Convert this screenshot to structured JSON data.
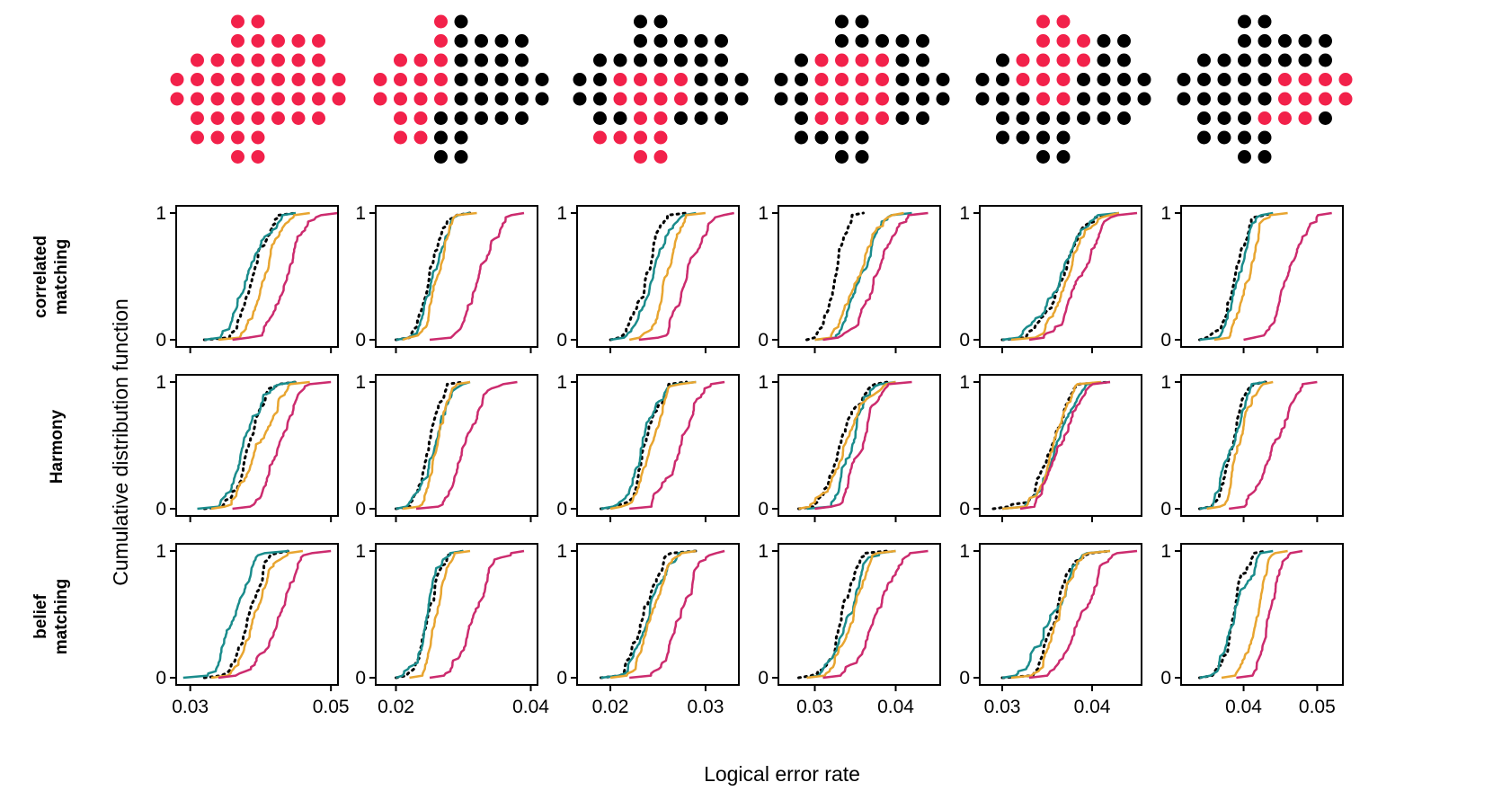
{
  "figure": {
    "ylabel": "Cumulative distribution function",
    "xlabel": "Logical error rate",
    "row_labels": [
      [
        "correlated",
        "matching"
      ],
      [
        "Harmony"
      ],
      [
        "belief",
        "matching"
      ]
    ],
    "colors": {
      "red": "#f2214a",
      "black": "#000000",
      "teal": "#1a8c8c",
      "orange": "#e8a530",
      "magenta": "#cc2b6e",
      "dotted": "#000000"
    }
  },
  "chart_data": {
    "type": "line",
    "description_series": [
      "dotted (black)",
      "teal",
      "orange",
      "magenta"
    ],
    "yticks": [
      {
        "v": 0,
        "label": "0"
      },
      {
        "v": 1,
        "label": "1"
      }
    ],
    "columns": [
      {
        "xlim": [
          0.028,
          0.051
        ],
        "xticks": [
          {
            "v": 0.03,
            "label": "0.03"
          },
          {
            "v": 0.05,
            "label": "0.05"
          }
        ],
        "rows": [
          {
            "dotted": [
              0.032,
              0.045
            ],
            "teal": [
              0.032,
              0.045
            ],
            "orange": [
              0.034,
              0.047
            ],
            "magenta": [
              0.036,
              0.051
            ]
          },
          {
            "dotted": [
              0.032,
              0.045
            ],
            "teal": [
              0.031,
              0.045
            ],
            "orange": [
              0.033,
              0.047
            ],
            "magenta": [
              0.036,
              0.05
            ]
          },
          {
            "dotted": [
              0.032,
              0.044
            ],
            "teal": [
              0.029,
              0.044
            ],
            "orange": [
              0.033,
              0.046
            ],
            "magenta": [
              0.034,
              0.05
            ]
          }
        ]
      },
      {
        "xlim": [
          0.017,
          0.041
        ],
        "xticks": [
          {
            "v": 0.02,
            "label": "0.02"
          },
          {
            "v": 0.04,
            "label": "0.04"
          }
        ],
        "rows": [
          {
            "dotted": [
              0.02,
              0.031
            ],
            "teal": [
              0.02,
              0.031
            ],
            "orange": [
              0.021,
              0.032
            ],
            "magenta": [
              0.025,
              0.039
            ]
          },
          {
            "dotted": [
              0.02,
              0.03
            ],
            "teal": [
              0.02,
              0.031
            ],
            "orange": [
              0.021,
              0.031
            ],
            "magenta": [
              0.023,
              0.038
            ]
          },
          {
            "dotted": [
              0.02,
              0.03
            ],
            "teal": [
              0.02,
              0.03
            ],
            "orange": [
              0.022,
              0.031
            ],
            "magenta": [
              0.025,
              0.039
            ]
          }
        ]
      },
      {
        "xlim": [
          0.0165,
          0.0335
        ],
        "xticks": [
          {
            "v": 0.02,
            "label": "0.02"
          },
          {
            "v": 0.03,
            "label": "0.03"
          }
        ],
        "rows": [
          {
            "dotted": [
              0.02,
              0.028
            ],
            "teal": [
              0.02,
              0.029
            ],
            "orange": [
              0.022,
              0.03
            ],
            "magenta": [
              0.023,
              0.033
            ]
          },
          {
            "dotted": [
              0.019,
              0.028
            ],
            "teal": [
              0.019,
              0.029
            ],
            "orange": [
              0.02,
              0.029
            ],
            "magenta": [
              0.022,
              0.032
            ]
          },
          {
            "dotted": [
              0.019,
              0.029
            ],
            "teal": [
              0.019,
              0.029
            ],
            "orange": [
              0.02,
              0.029
            ],
            "magenta": [
              0.022,
              0.032
            ]
          }
        ]
      },
      {
        "xlim": [
          0.0255,
          0.0455
        ],
        "xticks": [
          {
            "v": 0.03,
            "label": "0.03"
          },
          {
            "v": 0.04,
            "label": "0.04"
          }
        ],
        "rows": [
          {
            "dotted": [
              0.029,
              0.036
            ],
            "teal": [
              0.03,
              0.042
            ],
            "orange": [
              0.03,
              0.041
            ],
            "magenta": [
              0.031,
              0.044
            ]
          },
          {
            "dotted": [
              0.028,
              0.039
            ],
            "teal": [
              0.029,
              0.04
            ],
            "orange": [
              0.028,
              0.04
            ],
            "magenta": [
              0.03,
              0.042
            ]
          },
          {
            "dotted": [
              0.028,
              0.039
            ],
            "teal": [
              0.029,
              0.04
            ],
            "orange": [
              0.029,
              0.04
            ],
            "magenta": [
              0.031,
              0.044
            ]
          }
        ]
      },
      {
        "xlim": [
          0.0275,
          0.0455
        ],
        "xticks": [
          {
            "v": 0.03,
            "label": "0.03"
          },
          {
            "v": 0.04,
            "label": "0.04"
          }
        ],
        "rows": [
          {
            "dotted": [
              0.03,
              0.043
            ],
            "teal": [
              0.03,
              0.043
            ],
            "orange": [
              0.031,
              0.043
            ],
            "magenta": [
              0.033,
              0.045
            ]
          },
          {
            "dotted": [
              0.029,
              0.042
            ],
            "teal": [
              0.03,
              0.042
            ],
            "orange": [
              0.03,
              0.041
            ],
            "magenta": [
              0.032,
              0.042
            ]
          },
          {
            "dotted": [
              0.03,
              0.042
            ],
            "teal": [
              0.03,
              0.042
            ],
            "orange": [
              0.031,
              0.042
            ],
            "magenta": [
              0.033,
              0.045
            ]
          }
        ]
      },
      {
        "xlim": [
          0.0315,
          0.0535
        ],
        "xticks": [
          {
            "v": 0.04,
            "label": "0.04"
          },
          {
            "v": 0.05,
            "label": "0.05"
          }
        ],
        "rows": [
          {
            "dotted": [
              0.034,
              0.044
            ],
            "teal": [
              0.034,
              0.044
            ],
            "orange": [
              0.036,
              0.046
            ],
            "magenta": [
              0.04,
              0.052
            ]
          },
          {
            "dotted": [
              0.034,
              0.043
            ],
            "teal": [
              0.034,
              0.043
            ],
            "orange": [
              0.035,
              0.044
            ],
            "magenta": [
              0.038,
              0.05
            ]
          },
          {
            "dotted": [
              0.034,
              0.043
            ],
            "teal": [
              0.034,
              0.044
            ],
            "orange": [
              0.037,
              0.046
            ],
            "magenta": [
              0.039,
              0.048
            ]
          }
        ]
      }
    ]
  },
  "patterns": [
    {
      "highlight": "all"
    },
    {
      "highlight": "left-half"
    },
    {
      "highlight": "center-bottom"
    },
    {
      "highlight": "center"
    },
    {
      "highlight": "center-top"
    },
    {
      "highlight": "right-half"
    }
  ]
}
